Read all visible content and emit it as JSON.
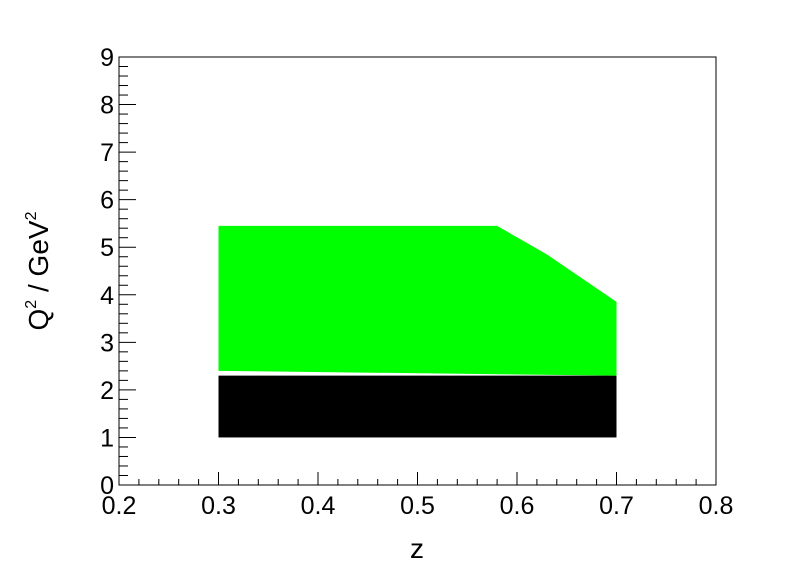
{
  "chart_data": {
    "type": "scatter",
    "title": "",
    "xlabel": "z",
    "ylabel": {
      "base": "Q",
      "sup": "2",
      "sep": " / GeV",
      "sup2": "2"
    },
    "xlim": [
      0.2,
      0.8
    ],
    "ylim": [
      0,
      9
    ],
    "x_major_ticks": [
      0.2,
      0.3,
      0.4,
      0.5,
      0.6,
      0.7,
      0.8
    ],
    "x_tick_labels": [
      "0.2",
      "0.3",
      "0.4",
      "0.5",
      "0.6",
      "0.7",
      "0.8"
    ],
    "y_major_ticks": [
      0,
      1,
      2,
      3,
      4,
      5,
      6,
      7,
      8,
      9
    ],
    "y_tick_labels": [
      "0",
      "1",
      "2",
      "3",
      "4",
      "5",
      "6",
      "7",
      "8",
      "9"
    ],
    "grid": false,
    "series": [
      {
        "color": "#000000",
        "region": {
          "x": [
            0.3,
            0.7
          ],
          "y": [
            1.0,
            2.3
          ]
        }
      },
      {
        "color": "#00ff00",
        "region": {
          "outline": [
            [
              0.3,
              2.4
            ],
            [
              0.3,
              5.45
            ],
            [
              0.58,
              5.45
            ],
            [
              0.63,
              4.85
            ],
            [
              0.7,
              3.85
            ],
            [
              0.7,
              2.3
            ]
          ]
        }
      }
    ]
  }
}
